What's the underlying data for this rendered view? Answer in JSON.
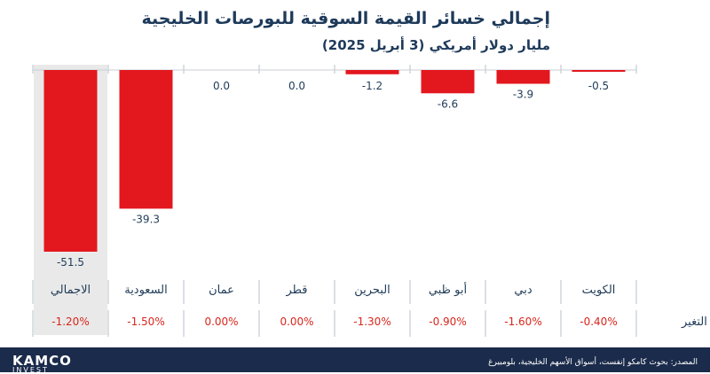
{
  "title": "إجمالي خسائر القيمة السوقية للبورصات الخليجية",
  "subtitle": "مليار دولار أمريكي (3 أبريل 2025)",
  "change_row_label": "التغير",
  "source": "المصدر: بحوث كامكو إنفست، أسواق الأسهم الخليجية، بلومبيرغ",
  "logo": {
    "name": "KAMCO",
    "tagline": "INVEST"
  },
  "colors": {
    "bar": "#e3171e",
    "highlight": "#e9e9e9",
    "text": "#1f3b57",
    "change": "#d9261c",
    "footer": "#1b2b4b"
  },
  "chart_data": {
    "type": "bar",
    "categories": [
      "الكويت",
      "دبي",
      "أبو ظبي",
      "البحرين",
      "قطر",
      "عمان",
      "السعودية",
      "الاجمالي"
    ],
    "values": [
      -0.5,
      -3.9,
      -6.6,
      -1.2,
      0.0,
      0.0,
      -39.3,
      -51.5
    ],
    "value_labels": [
      "-0.5",
      "-3.9",
      "-6.6",
      "-1.2",
      "0.0",
      "0.0",
      "-39.3",
      "-51.5"
    ],
    "changes": [
      "-0.40%",
      "-1.60%",
      "-0.90%",
      "-1.30%",
      "0.00%",
      "0.00%",
      "-1.50%",
      "-1.20%"
    ],
    "highlighted_category": "الاجمالي",
    "ylim": [
      -51.5,
      0
    ]
  }
}
